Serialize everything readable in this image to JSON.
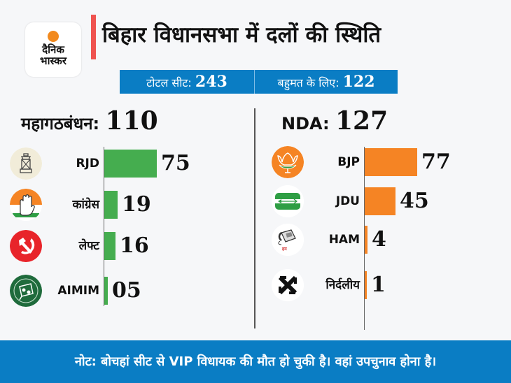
{
  "brand": {
    "line1": "दैनिक",
    "line2": "भास्कर",
    "sun_color": "#f28a1e"
  },
  "title": "बिहार विधानसभा में दलों की स्थिति",
  "summary": {
    "total_label": "टोटल सीट:",
    "total_value": "243",
    "majority_label": "बहुमत के लिए:",
    "majority_value": "122"
  },
  "footer_note": "नोट: बोचहां सीट से VIP विधायक की मौत हो चुकी है। वहां उपचुनाव होना है।",
  "colors": {
    "accent_blue": "#0a7dc4",
    "title_bar": "#ef5350",
    "mahagathbandhan_bar": "#45ad4f",
    "nda_bar": "#f58424"
  },
  "chart_data": [
    {
      "type": "bar",
      "orientation": "horizontal",
      "title": "महागठबंधन:",
      "total": "110",
      "categories": [
        "RJD",
        "कांग्रेस",
        "लेफ्ट",
        "AIMIM"
      ],
      "values": [
        75,
        19,
        16,
        5
      ],
      "value_labels": [
        "75",
        "19",
        "16",
        "05"
      ],
      "icons": [
        "lantern-icon",
        "hand-icon",
        "hammer-sickle-icon",
        "kite-icon"
      ],
      "color": "#45ad4f"
    },
    {
      "type": "bar",
      "orientation": "horizontal",
      "title": "NDA:",
      "total": "127",
      "categories": [
        "BJP",
        "JDU",
        "HAM",
        "निर्दलीय"
      ],
      "values": [
        77,
        45,
        4,
        1
      ],
      "value_labels": [
        "77",
        "45",
        "4",
        "1"
      ],
      "icons": [
        "lotus-icon",
        "arrow-icon",
        "telephone-icon",
        "independent-symbol-icon"
      ],
      "icon_text": {
        "ham_logo": "हम"
      },
      "color": "#f58424"
    }
  ]
}
